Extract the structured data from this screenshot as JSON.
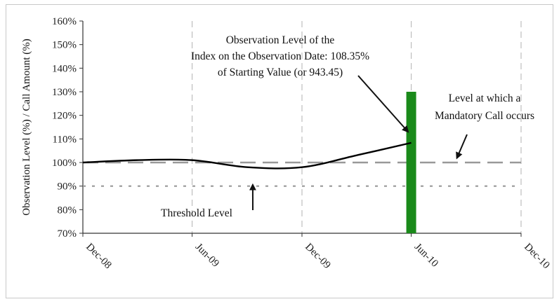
{
  "chart_data": {
    "type": "line",
    "title": "",
    "xlabel": "",
    "ylabel": "Observation Level (%) / Call Amount (%)",
    "ylim": [
      70,
      160
    ],
    "y_ticks": [
      "160%",
      "150%",
      "140%",
      "130%",
      "120%",
      "110%",
      "100%",
      "90%",
      "80%",
      "70%"
    ],
    "x_ticks": [
      "Dec-08",
      "Jun-09",
      "Dec-09",
      "Jun-10",
      "Dec-10"
    ],
    "x_tick_values": [
      "2008-12-01",
      "2009-06-01",
      "2009-12-01",
      "2010-06-01",
      "2010-12-01"
    ],
    "grid": "vertical dashed",
    "series": [
      {
        "color": "#000000",
        "x": [
          "2008-12-01",
          "2009-03-01",
          "2009-06-01",
          "2009-09-01",
          "2009-12-01",
          "2010-03-01",
          "2010-06-01"
        ],
        "values": [
          100,
          101,
          101,
          98,
          98,
          103,
          108.35
        ]
      }
    ],
    "reference_lines": [
      {
        "value": 100,
        "style": "long-dash",
        "color": "#999999"
      },
      {
        "value": 90,
        "style": "dotted",
        "color": "#999999"
      }
    ],
    "bars": [
      {
        "x": "2010-06-01",
        "value": 130,
        "color": "#1a8a1a"
      }
    ],
    "annotations": [
      {
        "lines": [
          "Observation Level of the",
          "Index on the Observation Date: 108.35%",
          "of Starting Value (or 943.45)"
        ],
        "arrow_to": {
          "x": "2010-06-01",
          "y": 108.35
        }
      },
      {
        "lines": [
          "Level at which a",
          "Mandatory Call occurs"
        ],
        "arrow_to": {
          "x": "2010-08-15",
          "y": 100
        }
      },
      {
        "lines": [
          "Threshold Level"
        ],
        "arrow_to": {
          "x": "2009-09-10",
          "y": 90
        }
      }
    ]
  }
}
